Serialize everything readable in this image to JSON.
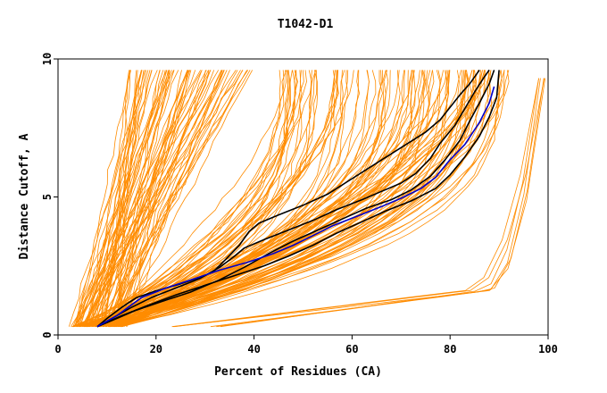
{
  "chart_data": {
    "type": "line",
    "title": "T1042-D1",
    "xlabel": "Percent of Residues (CA)",
    "ylabel": "Distance Cutoff, A",
    "xlim": [
      0,
      100
    ],
    "ylim": [
      0,
      10
    ],
    "x_ticks": [
      0,
      20,
      40,
      60,
      80,
      100
    ],
    "y_ticks": [
      0,
      5,
      10
    ],
    "grid": false,
    "colors": {
      "models": "#ff8c00",
      "highlight_black": "#000000",
      "highlight_blue": "#0000cc",
      "axis": "#000000"
    },
    "series": [
      {
        "name": "highlight-black-1",
        "color": "#000000",
        "points": [
          [
            8,
            0.3
          ],
          [
            12,
            0.6
          ],
          [
            16,
            0.9
          ],
          [
            21,
            1.2
          ],
          [
            27,
            1.55
          ],
          [
            33,
            2.0
          ],
          [
            38,
            2.45
          ],
          [
            43,
            2.95
          ],
          [
            48,
            3.4
          ],
          [
            53,
            3.8
          ],
          [
            58,
            4.2
          ],
          [
            63,
            4.6
          ],
          [
            68,
            4.9
          ],
          [
            72,
            5.25
          ],
          [
            76,
            5.75
          ],
          [
            79,
            6.35
          ],
          [
            82,
            7.05
          ],
          [
            84,
            7.75
          ],
          [
            86,
            8.4
          ],
          [
            88,
            9.1
          ],
          [
            89,
            9.6
          ]
        ]
      },
      {
        "name": "highlight-black-2",
        "color": "#000000",
        "points": [
          [
            8,
            0.3
          ],
          [
            11,
            0.6
          ],
          [
            15,
            1.0
          ],
          [
            19,
            1.35
          ],
          [
            24,
            1.7
          ],
          [
            29,
            2.05
          ],
          [
            33,
            2.45
          ],
          [
            36,
            2.85
          ],
          [
            38,
            3.15
          ],
          [
            42,
            3.45
          ],
          [
            47,
            3.8
          ],
          [
            52,
            4.15
          ],
          [
            57,
            4.55
          ],
          [
            62,
            4.9
          ],
          [
            66,
            5.2
          ],
          [
            70,
            5.5
          ],
          [
            73,
            5.85
          ],
          [
            76,
            6.4
          ],
          [
            78,
            6.95
          ],
          [
            81,
            7.6
          ],
          [
            83,
            8.2
          ],
          [
            85,
            8.8
          ],
          [
            87,
            9.35
          ],
          [
            88,
            9.6
          ]
        ]
      },
      {
        "name": "highlight-black-3",
        "color": "#000000",
        "points": [
          [
            8,
            0.3
          ],
          [
            10,
            0.6
          ],
          [
            13,
            1.0
          ],
          [
            16,
            1.35
          ],
          [
            20,
            1.6
          ],
          [
            25,
            1.85
          ],
          [
            30,
            2.15
          ],
          [
            32,
            2.35
          ],
          [
            34,
            2.7
          ],
          [
            37,
            3.25
          ],
          [
            39,
            3.75
          ],
          [
            41,
            4.05
          ],
          [
            45,
            4.35
          ],
          [
            50,
            4.7
          ],
          [
            55,
            5.1
          ],
          [
            59,
            5.55
          ],
          [
            63,
            6.0
          ],
          [
            67,
            6.45
          ],
          [
            71,
            6.9
          ],
          [
            75,
            7.35
          ],
          [
            78,
            7.8
          ],
          [
            80,
            8.25
          ],
          [
            82,
            8.7
          ],
          [
            84,
            9.1
          ],
          [
            86,
            9.6
          ]
        ]
      },
      {
        "name": "highlight-black-4",
        "color": "#000000",
        "points": [
          [
            8,
            0.3
          ],
          [
            13,
            0.7
          ],
          [
            18,
            1.05
          ],
          [
            24,
            1.45
          ],
          [
            30,
            1.8
          ],
          [
            36,
            2.15
          ],
          [
            42,
            2.5
          ],
          [
            47,
            2.85
          ],
          [
            52,
            3.25
          ],
          [
            57,
            3.7
          ],
          [
            62,
            4.1
          ],
          [
            67,
            4.5
          ],
          [
            72,
            4.85
          ],
          [
            77,
            5.3
          ],
          [
            80,
            5.8
          ],
          [
            83,
            6.45
          ],
          [
            86,
            7.2
          ],
          [
            88,
            7.9
          ],
          [
            89.5,
            8.6
          ],
          [
            90,
            9.6
          ]
        ]
      },
      {
        "name": "highlight-blue",
        "color": "#0000cc",
        "points": [
          [
            8,
            0.3
          ],
          [
            12,
            0.7
          ],
          [
            17,
            1.35
          ],
          [
            22,
            1.7
          ],
          [
            28,
            2.05
          ],
          [
            33,
            2.35
          ],
          [
            39,
            2.65
          ],
          [
            44,
            2.95
          ],
          [
            48,
            3.25
          ],
          [
            52,
            3.6
          ],
          [
            56,
            3.95
          ],
          [
            61,
            4.3
          ],
          [
            66,
            4.65
          ],
          [
            70,
            4.95
          ],
          [
            74,
            5.3
          ],
          [
            77,
            5.7
          ],
          [
            80,
            6.35
          ],
          [
            83,
            6.9
          ],
          [
            86,
            7.7
          ],
          [
            88,
            8.4
          ],
          [
            89,
            9.0
          ]
        ]
      }
    ]
  }
}
